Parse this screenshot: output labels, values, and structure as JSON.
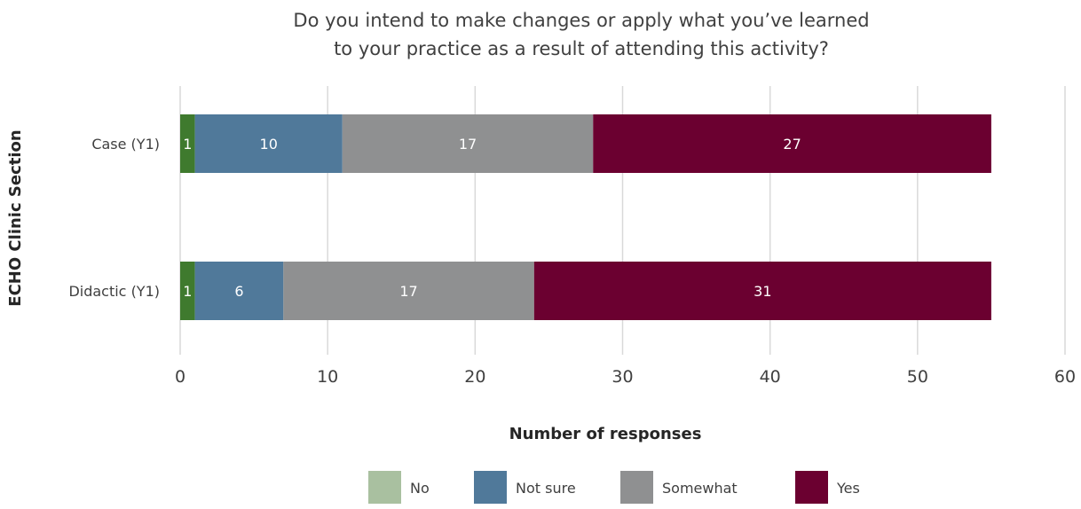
{
  "chart_data": {
    "type": "bar",
    "orientation": "horizontal",
    "stacked": true,
    "title_lines": [
      "Do you intend to make changes or apply what you’ve learned",
      "to your practice as a result of attending this activity?"
    ],
    "xlabel": "Number of responses",
    "ylabel": "ECHO Clinic Section",
    "xlim": [
      0,
      60
    ],
    "xticks": [
      0,
      10,
      20,
      30,
      40,
      50,
      60
    ],
    "grid": true,
    "legend_position": "bottom",
    "categories": [
      "Case (Y1)",
      "Didactic (Y1)"
    ],
    "series": [
      {
        "name": "No",
        "values": [
          1,
          1
        ],
        "color": "#a9c0a0",
        "bar_color": "#3f7a2e"
      },
      {
        "name": "Not sure",
        "values": [
          10,
          6
        ],
        "color": "#50799a"
      },
      {
        "name": "Somewhat",
        "values": [
          17,
          17
        ],
        "color": "#8f9091"
      },
      {
        "name": "Yes",
        "values": [
          27,
          31
        ],
        "color": "#6b0030"
      }
    ]
  }
}
